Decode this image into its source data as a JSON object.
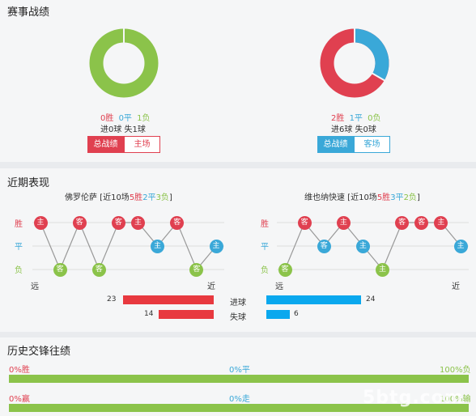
{
  "sections": {
    "record": "赛事战绩",
    "recent": "近期表现",
    "h2h": "历史交锋往绩"
  },
  "colors": {
    "win": "#e04050",
    "draw": "#3aa8d8",
    "lose": "#8bc34a"
  },
  "home": {
    "donut": {
      "win": 0,
      "draw": 0,
      "lose": 1
    },
    "stats": {
      "win": "0胜",
      "draw": "0平",
      "lose": "1负"
    },
    "goals": "进0球 失1球",
    "btn_total": "总战绩",
    "btn_venue": "主场"
  },
  "away": {
    "donut": {
      "win": 2,
      "draw": 1,
      "lose": 0
    },
    "stats": {
      "win": "2胜",
      "draw": "1平",
      "lose": "0负"
    },
    "goals": "进6球 失0球",
    "btn_total": "总战绩",
    "btn_venue": "客场"
  },
  "recent": {
    "axis": {
      "win": "胜",
      "draw": "平",
      "lose": "负",
      "far": "远",
      "near": "近"
    },
    "left": {
      "team": "佛罗伦萨",
      "pre": " [近10场",
      "w": "5胜",
      "d": "2平",
      "l": "3负",
      "post": "]",
      "results": [
        "W",
        "L",
        "W",
        "L",
        "W",
        "W",
        "D",
        "W",
        "L",
        "D"
      ],
      "venues": [
        "主",
        "客",
        "客",
        "客",
        "客",
        "主",
        "主",
        "客",
        "客",
        "主"
      ]
    },
    "right": {
      "team": "维也纳快速",
      "pre": " [近10场",
      "w": "5胜",
      "d": "3平",
      "l": "2负",
      "post": "]",
      "results": [
        "L",
        "W",
        "D",
        "W",
        "D",
        "L",
        "W",
        "W",
        "W",
        "D"
      ],
      "venues": [
        "客",
        "客",
        "客",
        "主",
        "主",
        "主",
        "客",
        "客",
        "主",
        "主"
      ]
    },
    "goals": {
      "scored_label": "进球",
      "conceded_label": "失球",
      "left_scored": 23,
      "left_conceded": 14,
      "right_scored": 24,
      "right_conceded": 6
    }
  },
  "h2h": {
    "row1": {
      "left": "0%胜",
      "mid": "0%平",
      "right": "100%负"
    },
    "row2": {
      "left": "0%赢",
      "mid": "0%走",
      "right": "100%输"
    }
  },
  "watermark": "5btg.com"
}
